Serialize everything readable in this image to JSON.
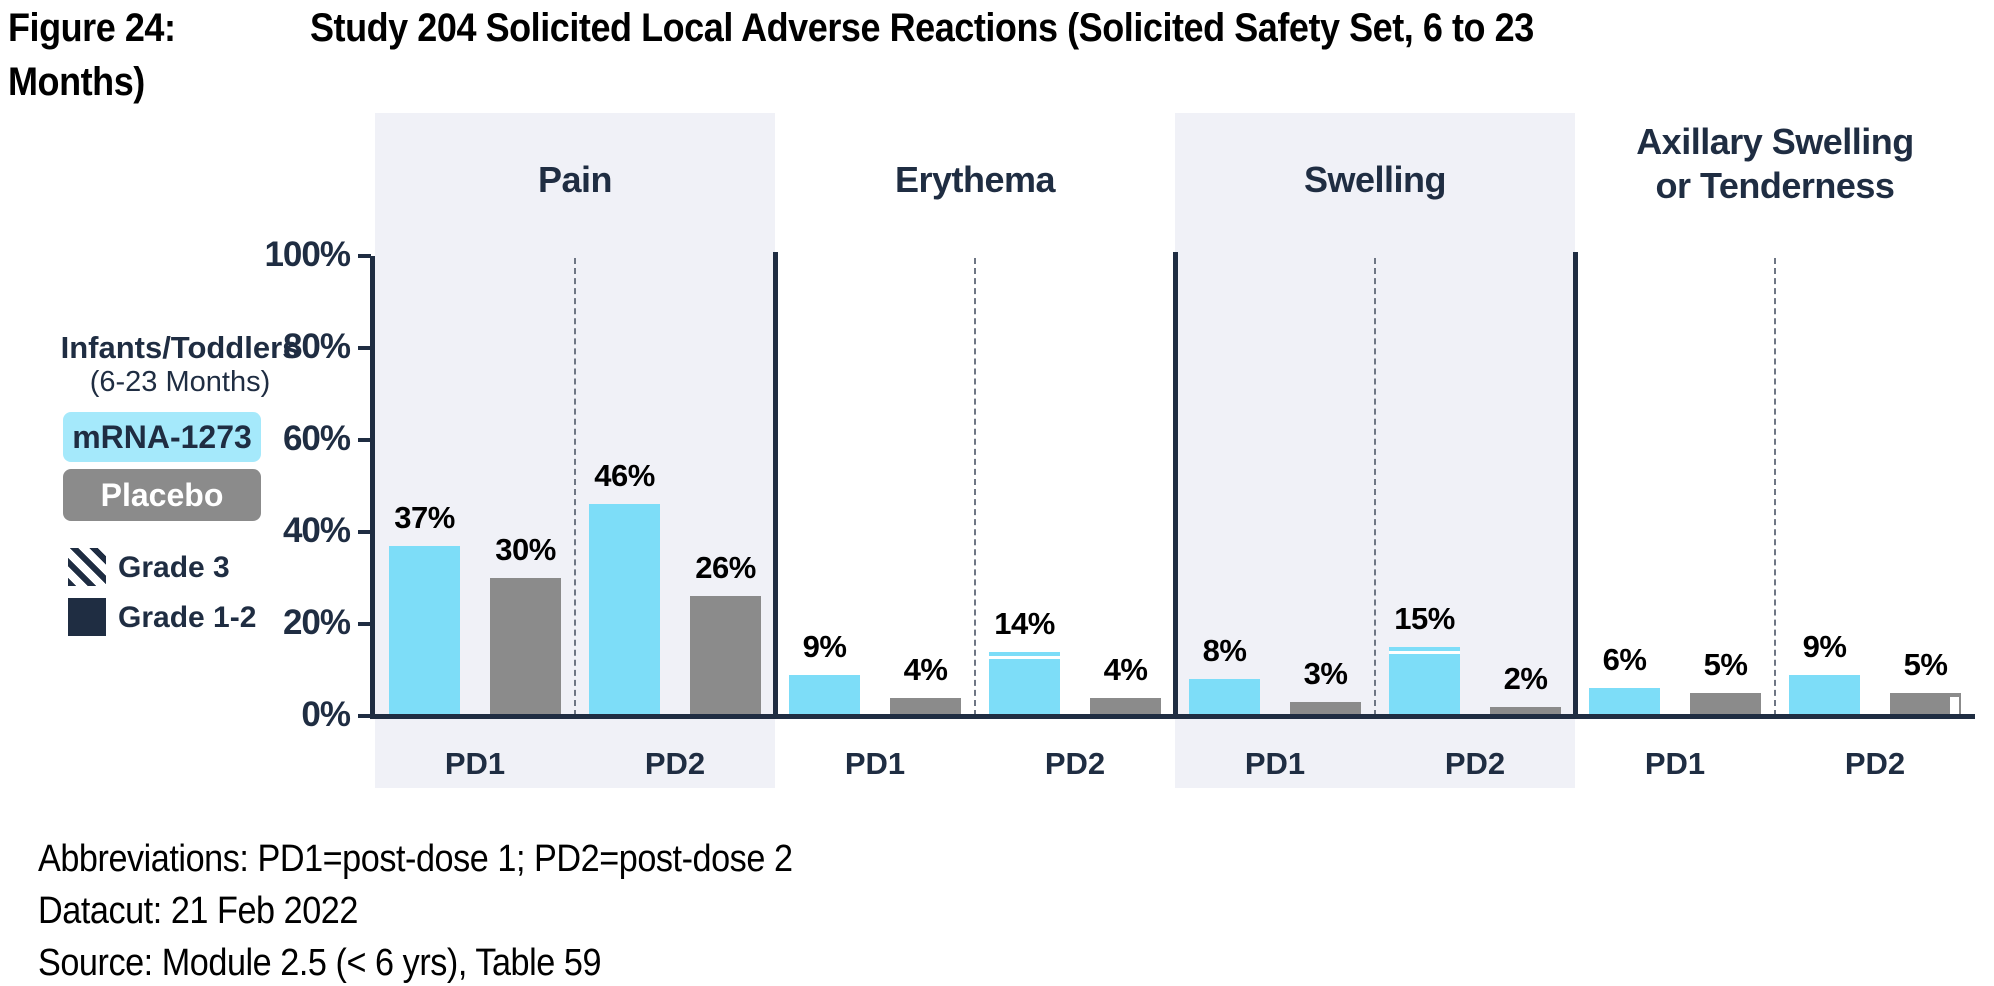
{
  "title": {
    "label": "Figure 24:",
    "line1": "Study 204 Solicited Local Adverse Reactions (Solicited Safety Set, 6 to 23",
    "line2": "Months)"
  },
  "legend": {
    "population_line1": "Infants/Toddlers",
    "population_line2": "(6-23 Months)",
    "series": [
      {
        "name": "mRNA-1273",
        "color": "#7DDDF8"
      },
      {
        "name": "Placebo",
        "color": "#8B8B8B"
      }
    ],
    "grades": [
      {
        "name": "Grade 3",
        "style": "hatched"
      },
      {
        "name": "Grade 1-2",
        "style": "solid"
      }
    ]
  },
  "colors": {
    "mrna": "#7DDDF8",
    "mrna_badge": "#A5E9FB",
    "placebo": "#8B8B8B",
    "navy": "#1F2D42",
    "panel_bg": "#F0F1F7"
  },
  "chart_data": {
    "type": "bar",
    "subtype": "grouped-clustered",
    "ylim": [
      0,
      100
    ],
    "y_ticks": [
      "0%",
      "20%",
      "40%",
      "60%",
      "80%",
      "100%"
    ],
    "grid": false,
    "legend_position": "left",
    "panels": [
      {
        "title": "Pain",
        "shaded": true,
        "groups": [
          {
            "label": "PD1",
            "bars": [
              {
                "series": "mRNA-1273",
                "value": 37,
                "label": "37%"
              },
              {
                "series": "Placebo",
                "value": 30,
                "label": "30%"
              }
            ]
          },
          {
            "label": "PD2",
            "bars": [
              {
                "series": "mRNA-1273",
                "value": 46,
                "label": "46%"
              },
              {
                "series": "Placebo",
                "value": 26,
                "label": "26%"
              }
            ]
          }
        ]
      },
      {
        "title": "Erythema",
        "shaded": false,
        "groups": [
          {
            "label": "PD1",
            "bars": [
              {
                "series": "mRNA-1273",
                "value": 9,
                "label": "9%"
              },
              {
                "series": "Placebo",
                "value": 4,
                "label": "4%"
              }
            ]
          },
          {
            "label": "PD2",
            "bars": [
              {
                "series": "mRNA-1273",
                "value": 14,
                "label": "14%",
                "grade3_cap": true
              },
              {
                "series": "Placebo",
                "value": 4,
                "label": "4%"
              }
            ]
          }
        ]
      },
      {
        "title": "Swelling",
        "shaded": true,
        "groups": [
          {
            "label": "PD1",
            "bars": [
              {
                "series": "mRNA-1273",
                "value": 8,
                "label": "8%"
              },
              {
                "series": "Placebo",
                "value": 3,
                "label": "3%"
              }
            ]
          },
          {
            "label": "PD2",
            "bars": [
              {
                "series": "mRNA-1273",
                "value": 15,
                "label": "15%",
                "grade3_cap": true
              },
              {
                "series": "Placebo",
                "value": 2,
                "label": "2%"
              }
            ]
          }
        ]
      },
      {
        "title": "Axillary Swelling\nor Tenderness",
        "shaded": false,
        "groups": [
          {
            "label": "PD1",
            "bars": [
              {
                "series": "mRNA-1273",
                "value": 6,
                "label": "6%"
              },
              {
                "series": "Placebo",
                "value": 5,
                "label": "5%"
              }
            ]
          },
          {
            "label": "PD2",
            "bars": [
              {
                "series": "mRNA-1273",
                "value": 9,
                "label": "9%"
              },
              {
                "series": "Placebo",
                "value": 5,
                "label": "5%",
                "grade3_notch": true
              }
            ]
          }
        ]
      }
    ]
  },
  "footer": {
    "lines": [
      "Abbreviations: PD1=post-dose 1; PD2=post-dose 2",
      "Datacut: 21 Feb 2022",
      "Source: Module 2.5 (< 6 yrs), Table 59"
    ]
  }
}
